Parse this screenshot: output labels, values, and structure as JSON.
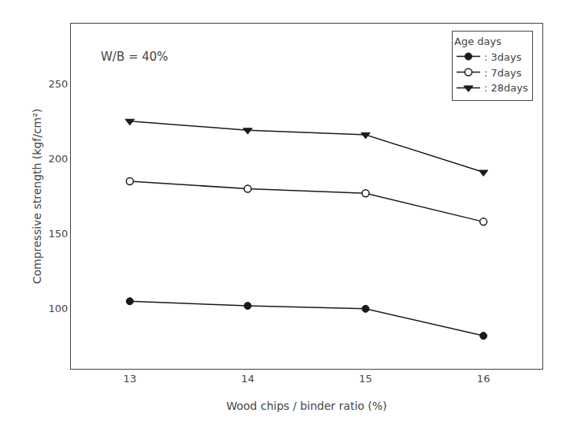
{
  "chart_data": {
    "type": "line",
    "x": [
      13,
      14,
      15,
      16
    ],
    "series": [
      {
        "name": ": 3days",
        "values": [
          105,
          102,
          100,
          82
        ],
        "marker": "circle"
      },
      {
        "name": ": 7days",
        "values": [
          185,
          180,
          177,
          158
        ],
        "marker": "circle-open"
      },
      {
        "name": ": 28days",
        "values": [
          225,
          219,
          216,
          191
        ],
        "marker": "triangle-down"
      }
    ],
    "color": "#1a1a1a",
    "xlabel": "Wood chips / binder ratio (%)",
    "ylabel": "Compressive strength (kgf/cm²)",
    "annotation": "W/B = 40%",
    "legend_title": "Age days",
    "legend": "upper right",
    "xlim": [
      12.5,
      16.5
    ],
    "xticks": [
      13,
      14,
      15,
      16
    ],
    "ylim": [
      60,
      290
    ],
    "yticks": [
      100,
      150,
      200,
      250
    ],
    "grid": false
  }
}
